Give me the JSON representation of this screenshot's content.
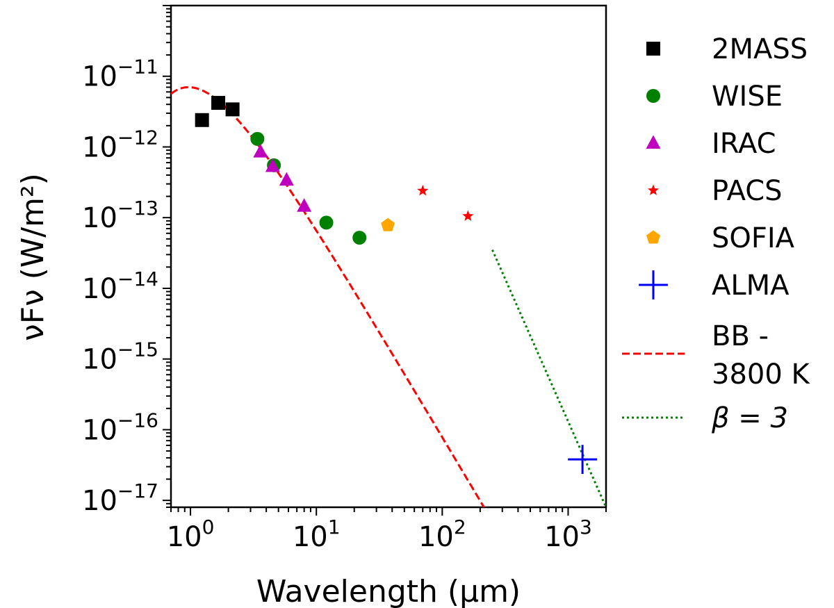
{
  "chart_data": {
    "type": "scatter",
    "scale": {
      "x": "log",
      "y": "log"
    },
    "xlabel": "Wavelength (μm)",
    "ylabel": "νFν (W/m²)",
    "xlim": [
      0.7,
      2000
    ],
    "ylim": [
      8e-18,
      1e-10
    ],
    "x_ticks": [
      {
        "value": 1,
        "base": "10",
        "exp": "0"
      },
      {
        "value": 10,
        "base": "10",
        "exp": "1"
      },
      {
        "value": 100,
        "base": "10",
        "exp": "2"
      },
      {
        "value": 1000,
        "base": "10",
        "exp": "3"
      }
    ],
    "y_ticks": [
      {
        "value": 1e-17,
        "base": "10",
        "exp": "−17"
      },
      {
        "value": 1e-16,
        "base": "10",
        "exp": "−16"
      },
      {
        "value": 1e-15,
        "base": "10",
        "exp": "−15"
      },
      {
        "value": 1e-14,
        "base": "10",
        "exp": "−14"
      },
      {
        "value": 1e-13,
        "base": "10",
        "exp": "−13"
      },
      {
        "value": 1e-12,
        "base": "10",
        "exp": "−12"
      },
      {
        "value": 1e-11,
        "base": "10",
        "exp": "−11"
      }
    ],
    "legend_position": "outside-right",
    "series": [
      {
        "name": "2MASS",
        "marker": "square",
        "color": "#000000",
        "x": [
          1.235,
          1.662,
          2.159
        ],
        "y": [
          2.4e-12,
          4.2e-12,
          3.4e-12
        ]
      },
      {
        "name": "WISE",
        "marker": "circle",
        "color": "#008000",
        "x": [
          3.4,
          4.6,
          12,
          22
        ],
        "y": [
          1.3e-12,
          5.5e-13,
          8.5e-14,
          5.2e-14
        ]
      },
      {
        "name": "IRAC",
        "marker": "triangle",
        "color": "#bf00bf",
        "x": [
          3.6,
          4.5,
          5.8,
          8.0
        ],
        "y": [
          8.5e-13,
          5.3e-13,
          3.4e-13,
          1.45e-13
        ]
      },
      {
        "name": "PACS",
        "marker": "star",
        "color": "#ff0000",
        "x": [
          70,
          160
        ],
        "y": [
          2.4e-13,
          1.05e-13
        ]
      },
      {
        "name": "SOFIA",
        "marker": "pentagon",
        "color": "#ffa500",
        "x": [
          37
        ],
        "y": [
          7.8e-14
        ]
      },
      {
        "name": "ALMA",
        "marker": "plus",
        "color": "#0000ff",
        "x": [
          1300
        ],
        "y": [
          3.8e-17
        ]
      }
    ],
    "lines": [
      {
        "name_lines": [
          "BB -",
          "3800 K"
        ],
        "style": "dashed",
        "color": "#ff0000",
        "model": "blackbody",
        "temperature_K": 3800,
        "peak_value": 7e-12,
        "x_range": [
          0.7,
          230
        ]
      },
      {
        "name_math": "β = 3",
        "style": "dotted",
        "color": "#008000",
        "model": "power-law",
        "x": [
          250,
          2000
        ],
        "y": [
          3.5e-14,
          8e-18
        ]
      }
    ]
  }
}
